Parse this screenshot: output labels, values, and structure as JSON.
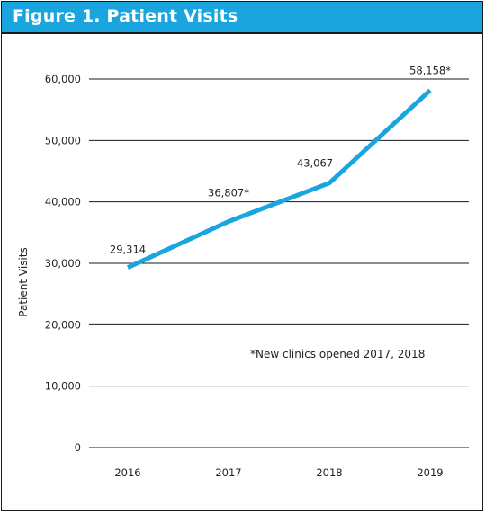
{
  "title": "Figure 1. Patient Visits",
  "colors": {
    "header": "#1aa5df",
    "line": "#1aa5df",
    "grid": "#1a1a1a"
  },
  "chart_data": {
    "type": "line",
    "title": "Figure 1. Patient Visits",
    "xlabel": "",
    "ylabel": "Patient Visits",
    "categories": [
      "2016",
      "2017",
      "2018",
      "2019"
    ],
    "series": [
      {
        "values": [
          29314,
          36807,
          43067,
          58158
        ]
      }
    ],
    "data_labels": [
      "29,314",
      "36,807*",
      "43,067",
      "58,158*"
    ],
    "yticks": [
      0,
      10000,
      20000,
      30000,
      40000,
      50000,
      60000
    ],
    "ytick_labels": [
      "0",
      "10,000",
      "20,000",
      "30,000",
      "40,000",
      "50,000",
      "60,000"
    ],
    "ylim": [
      0,
      60000
    ],
    "grid": true,
    "legend": "none",
    "annotation": "*New clinics opened 2017, 2018"
  }
}
